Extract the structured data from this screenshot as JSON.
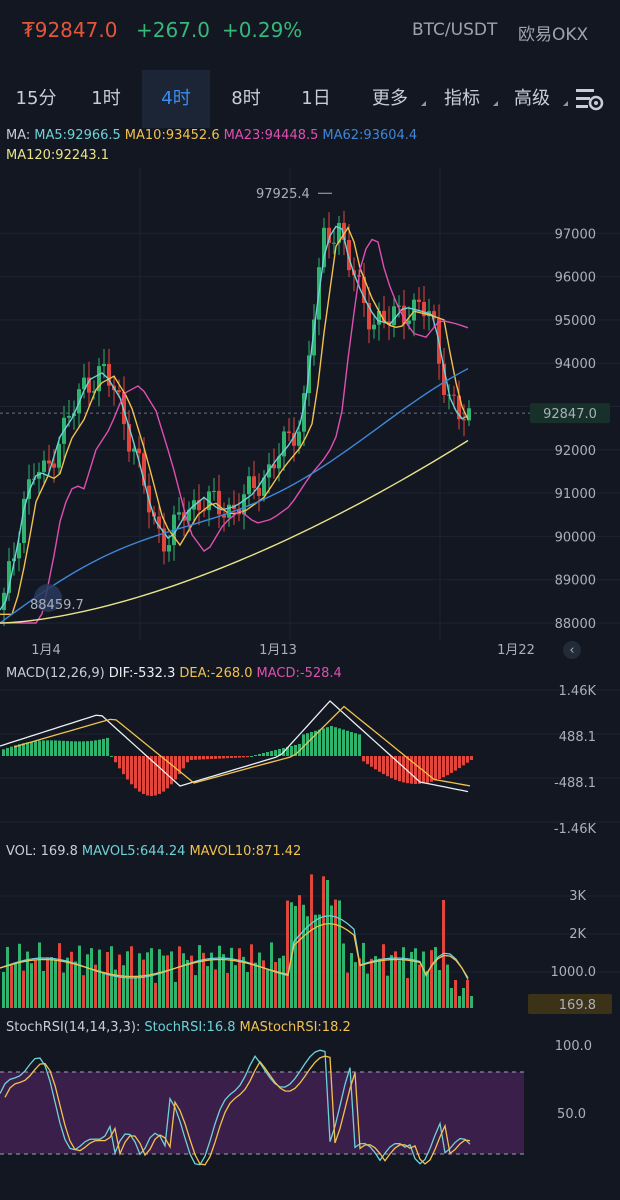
{
  "header": {
    "price": "₮92847.0",
    "change": "+267.0",
    "change_pct": "+0.29%",
    "pair": "BTC/USDT",
    "exchange": "欧易OKX"
  },
  "tabs": [
    "15分",
    "1时",
    "4时",
    "8时",
    "1日",
    "更多",
    "指标",
    "高级"
  ],
  "active_tab": "4时",
  "icons": {
    "settings": "chart-settings-icon",
    "collapse": "chevron-left-icon",
    "rotate": "rotate-icon"
  },
  "ma_legend": {
    "prefix": "MA:",
    "ma5": "MA5:92966.5",
    "ma10": "MA10:93452.6",
    "ma23": "MA23:94448.5",
    "ma62": "MA62:93604.4",
    "ma120": "MA120:92243.1"
  },
  "colors": {
    "up": "#2fb36f",
    "down": "#e2453c",
    "ma5": "#6fd2d8",
    "ma10": "#f2c14e",
    "ma23": "#e04fb0",
    "ma62": "#3f86d8",
    "ma120": "#e8e48a"
  },
  "main_chart": {
    "y_ticks": [
      "97000",
      "96000",
      "95000",
      "94000",
      "92847.0",
      "92000",
      "91000",
      "90000",
      "89000",
      "88000"
    ],
    "x_ticks": [
      "1月4",
      "1月13",
      "1月22"
    ],
    "high_label": "97925.4",
    "low_label": "88459.7",
    "last_price": "92847.0"
  },
  "macd": {
    "legend_title": "MACD(12,26,9)",
    "dif": "DIF:-532.3",
    "dea": "DEA:-268.0",
    "macd": "MACD:-528.4",
    "y_ticks": [
      "1.46K",
      "488.1",
      "-488.1",
      "-1.46K"
    ]
  },
  "volume": {
    "legend_title": "VOL: 169.8",
    "mavol5": "MAVOL5:644.24",
    "mavol10": "MAVOL10:871.42",
    "y_ticks": [
      "3K",
      "2K",
      "1000.0"
    ],
    "last": "169.8"
  },
  "stochrsi": {
    "legend_title": "StochRSI(14,14,3,3):",
    "stoch": "StochRSI:16.8",
    "ma": "MAStochRSI:18.2",
    "y_ticks": [
      "100.0",
      "50.0"
    ]
  },
  "chart_data": {
    "type": "candlestick",
    "x_range": [
      "1月4",
      "1月22"
    ],
    "ylim": [
      88000,
      98000
    ],
    "high": 97925.4,
    "low": 88459.7,
    "last": 92847.0,
    "ma5_path": [
      88400,
      88900,
      89800,
      90700,
      91900,
      93200,
      93700,
      93500,
      92400,
      91300,
      90900,
      90700,
      90800,
      91000,
      91400,
      92000,
      94800,
      96300,
      96700,
      95800,
      95300,
      95200,
      94600,
      93100,
      92950
    ],
    "ma120_path": [
      88000,
      88300,
      88700,
      89100,
      89400,
      89600,
      89800,
      90000,
      90100,
      90200,
      90300,
      90500,
      90700,
      91000,
      91300,
      91600,
      91900,
      92100,
      92243
    ]
  }
}
